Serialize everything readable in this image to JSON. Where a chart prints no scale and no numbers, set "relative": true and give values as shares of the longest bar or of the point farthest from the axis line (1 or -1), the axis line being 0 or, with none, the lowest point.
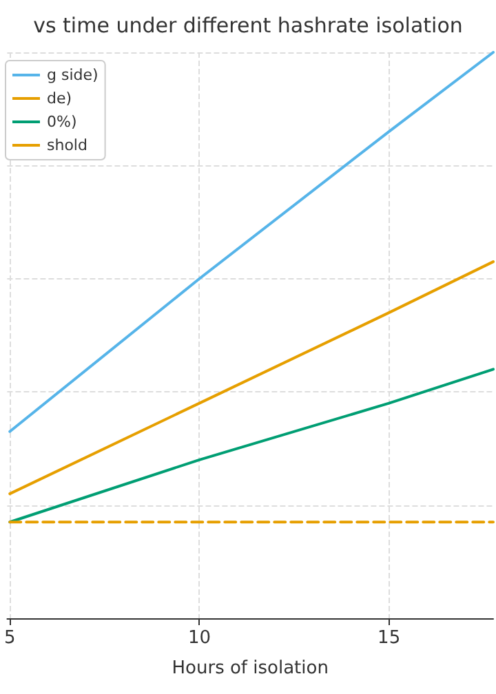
{
  "chart_data": {
    "type": "line",
    "title": "vs time under different hashrate isolation",
    "xlabel": "Hours of isolation",
    "relative": true,
    "x": [
      5,
      10,
      15,
      17.75
    ],
    "xlim": [
      4.93,
      17.75
    ],
    "xticks": [
      5,
      10,
      15
    ],
    "tick_labels": "x",
    "grid": true,
    "legend": "top left",
    "marker": "none",
    "series": [
      {
        "name": "g side)",
        "color": "#56b4e9",
        "values": [
          0.33,
          0.6,
          0.86,
          1.0
        ]
      },
      {
        "name": "de)",
        "color": "#e69f00",
        "values": [
          0.22,
          0.38,
          0.54,
          0.63
        ]
      },
      {
        "name": "0%)",
        "color": "#009e73",
        "values": [
          0.17,
          0.28,
          0.38,
          0.44
        ]
      },
      {
        "name": "shold",
        "color": "#e69f00",
        "line_style": "dashed",
        "values": [
          0.17,
          0.17,
          0.17,
          0.17
        ]
      }
    ]
  }
}
